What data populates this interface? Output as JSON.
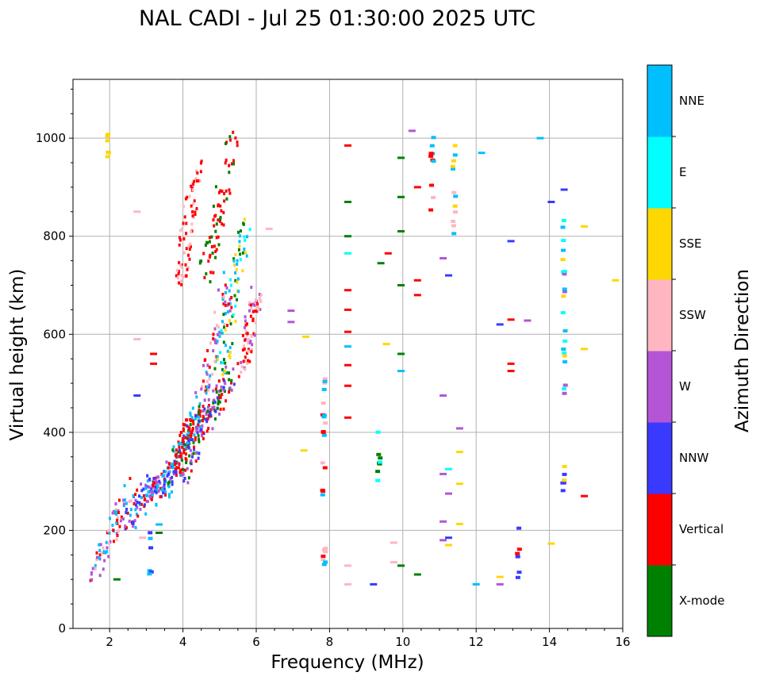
{
  "chart_data": {
    "type": "scatter",
    "title": "NAL CADI - Jul 25 01:30:00 2025 UTC",
    "xlabel": "Frequency (MHz)",
    "ylabel": "Virtual height (km)",
    "xlim": [
      1,
      16
    ],
    "ylim": [
      0,
      1120
    ],
    "xticks": [
      2,
      4,
      6,
      8,
      10,
      12,
      14,
      16
    ],
    "yticks": [
      0,
      200,
      400,
      600,
      800,
      1000
    ],
    "grid": true,
    "colorbar": {
      "label": "Azimuth Direction",
      "categories": [
        {
          "name": "X-mode",
          "color": "#008000"
        },
        {
          "name": "Vertical",
          "color": "#ff0000"
        },
        {
          "name": "NNW",
          "color": "#3a3aff"
        },
        {
          "name": "W",
          "color": "#b455d6"
        },
        {
          "name": "SSW",
          "color": "#ffb6c1"
        },
        {
          "name": "SSE",
          "color": "#ffd700"
        },
        {
          "name": "E",
          "color": "#00ffff"
        },
        {
          "name": "NNE",
          "color": "#00bfff"
        }
      ]
    },
    "trace_segments": [
      {
        "f0": 1.5,
        "f1": 2.6,
        "h0": 95,
        "h1": 300,
        "dir": [
          "Vertical",
          "NNE",
          "SSW",
          "W"
        ]
      },
      {
        "f0": 2.5,
        "f1": 3.2,
        "h0": 210,
        "h1": 300,
        "dir": [
          "Vertical",
          "NNW",
          "NNE",
          "W"
        ]
      },
      {
        "f0": 3.1,
        "f1": 3.8,
        "h0": 270,
        "h1": 330,
        "dir": [
          "W",
          "NNE",
          "NNW",
          "Vertical"
        ]
      },
      {
        "f0": 3.5,
        "f1": 4.3,
        "h0": 280,
        "h1": 420,
        "dir": [
          "Vertical",
          "X-mode",
          "NNW",
          "NNE"
        ]
      },
      {
        "f0": 3.8,
        "f1": 4.4,
        "h0": 330,
        "h1": 440,
        "dir": [
          "Vertical",
          "Vertical",
          "NNE"
        ]
      },
      {
        "f0": 4.0,
        "f1": 4.8,
        "h0": 300,
        "h1": 480,
        "dir": [
          "W",
          "NNW",
          "Vertical",
          "X-mode"
        ]
      },
      {
        "f0": 4.5,
        "f1": 5.3,
        "h0": 400,
        "h1": 520,
        "dir": [
          "X-mode",
          "NNW",
          "Vertical",
          "W"
        ]
      },
      {
        "f0": 4.5,
        "f1": 5.3,
        "h0": 470,
        "h1": 720,
        "dir": [
          "Vertical",
          "SSW",
          "NNE",
          "W"
        ]
      },
      {
        "f0": 5.0,
        "f1": 5.7,
        "h0": 500,
        "h1": 820,
        "dir": [
          "X-mode",
          "SSE",
          "E",
          "NNE"
        ]
      },
      {
        "f0": 5.6,
        "f1": 6.0,
        "h0": 520,
        "h1": 680,
        "dir": [
          "W",
          "SSW",
          "Vertical"
        ]
      },
      {
        "f0": 4.6,
        "f1": 5.4,
        "h0": 720,
        "h1": 1000,
        "dir": [
          "X-mode",
          "Vertical",
          "Vertical"
        ]
      },
      {
        "f0": 3.9,
        "f1": 4.4,
        "h0": 700,
        "h1": 960,
        "dir": [
          "Vertical",
          "Vertical",
          "SSW"
        ]
      }
    ],
    "vertical_strips": [
      {
        "f": 1.95,
        "h0": 955,
        "h1": 1010,
        "dir": [
          "SSE"
        ]
      },
      {
        "f": 3.1,
        "h0": 95,
        "h1": 200,
        "dir": [
          "NNE",
          "NNW"
        ]
      },
      {
        "f": 7.85,
        "h0": 90,
        "h1": 515,
        "dir": [
          "Vertical",
          "SSW",
          "NNE"
        ]
      },
      {
        "f": 9.35,
        "h0": 260,
        "h1": 410,
        "dir": [
          "X-mode",
          "E"
        ]
      },
      {
        "f": 10.8,
        "h0": 840,
        "h1": 1015,
        "dir": [
          "Vertical",
          "NNE",
          "SSW"
        ]
      },
      {
        "f": 11.4,
        "h0": 795,
        "h1": 1010,
        "dir": [
          "SSE",
          "NNE",
          "SSW"
        ]
      },
      {
        "f": 13.15,
        "h0": 90,
        "h1": 205,
        "dir": [
          "Vertical",
          "NNW"
        ]
      },
      {
        "f": 14.4,
        "h0": 470,
        "h1": 840,
        "dir": [
          "SSE",
          "W",
          "E",
          "NNE"
        ]
      },
      {
        "f": 14.4,
        "h0": 265,
        "h1": 340,
        "dir": [
          "SSE",
          "NNW"
        ]
      }
    ],
    "points": [
      {
        "f": 8.5,
        "h": 985,
        "dir": "Vertical"
      },
      {
        "f": 8.5,
        "h": 870,
        "dir": "X-mode"
      },
      {
        "f": 8.5,
        "h": 800,
        "dir": "X-mode"
      },
      {
        "f": 8.5,
        "h": 765,
        "dir": "E"
      },
      {
        "f": 8.5,
        "h": 690,
        "dir": "Vertical"
      },
      {
        "f": 8.5,
        "h": 650,
        "dir": "Vertical"
      },
      {
        "f": 8.5,
        "h": 605,
        "dir": "Vertical"
      },
      {
        "f": 8.5,
        "h": 575,
        "dir": "NNE"
      },
      {
        "f": 8.5,
        "h": 537,
        "dir": "Vertical"
      },
      {
        "f": 8.5,
        "h": 495,
        "dir": "Vertical"
      },
      {
        "f": 8.5,
        "h": 430,
        "dir": "Vertical"
      },
      {
        "f": 8.5,
        "h": 90,
        "dir": "SSW"
      },
      {
        "f": 8.5,
        "h": 128,
        "dir": "SSW"
      },
      {
        "f": 9.2,
        "h": 90,
        "dir": "NNW"
      },
      {
        "f": 9.6,
        "h": 765,
        "dir": "Vertical"
      },
      {
        "f": 9.4,
        "h": 745,
        "dir": "X-mode"
      },
      {
        "f": 9.55,
        "h": 580,
        "dir": "SSE"
      },
      {
        "f": 9.95,
        "h": 960,
        "dir": "X-mode"
      },
      {
        "f": 9.95,
        "h": 880,
        "dir": "X-mode"
      },
      {
        "f": 9.95,
        "h": 810,
        "dir": "X-mode"
      },
      {
        "f": 9.95,
        "h": 700,
        "dir": "X-mode"
      },
      {
        "f": 9.95,
        "h": 560,
        "dir": "X-mode"
      },
      {
        "f": 9.95,
        "h": 525,
        "dir": "NNE"
      },
      {
        "f": 9.95,
        "h": 128,
        "dir": "X-mode"
      },
      {
        "f": 10.4,
        "h": 900,
        "dir": "Vertical"
      },
      {
        "f": 10.4,
        "h": 710,
        "dir": "Vertical"
      },
      {
        "f": 10.4,
        "h": 680,
        "dir": "Vertical"
      },
      {
        "f": 10.4,
        "h": 110,
        "dir": "X-mode"
      },
      {
        "f": 10.25,
        "h": 1015,
        "dir": "W"
      },
      {
        "f": 11.1,
        "h": 755,
        "dir": "W"
      },
      {
        "f": 11.1,
        "h": 475,
        "dir": "W"
      },
      {
        "f": 11.1,
        "h": 315,
        "dir": "W"
      },
      {
        "f": 11.1,
        "h": 218,
        "dir": "W"
      },
      {
        "f": 11.1,
        "h": 180,
        "dir": "W"
      },
      {
        "f": 11.25,
        "h": 720,
        "dir": "NNW"
      },
      {
        "f": 11.25,
        "h": 325,
        "dir": "E"
      },
      {
        "f": 11.25,
        "h": 275,
        "dir": "W"
      },
      {
        "f": 11.25,
        "h": 185,
        "dir": "NNW"
      },
      {
        "f": 11.25,
        "h": 170,
        "dir": "SSE"
      },
      {
        "f": 11.55,
        "h": 408,
        "dir": "W"
      },
      {
        "f": 11.55,
        "h": 360,
        "dir": "SSE"
      },
      {
        "f": 11.55,
        "h": 295,
        "dir": "SSE"
      },
      {
        "f": 11.55,
        "h": 213,
        "dir": "SSE"
      },
      {
        "f": 12.15,
        "h": 970,
        "dir": "NNE"
      },
      {
        "f": 12.0,
        "h": 90,
        "dir": "NNE"
      },
      {
        "f": 12.65,
        "h": 105,
        "dir": "SSE"
      },
      {
        "f": 12.65,
        "h": 90,
        "dir": "W"
      },
      {
        "f": 12.65,
        "h": 620,
        "dir": "NNW"
      },
      {
        "f": 12.95,
        "h": 630,
        "dir": "Vertical"
      },
      {
        "f": 12.95,
        "h": 790,
        "dir": "NNW"
      },
      {
        "f": 12.95,
        "h": 540,
        "dir": "Vertical"
      },
      {
        "f": 12.95,
        "h": 525,
        "dir": "Vertical"
      },
      {
        "f": 13.4,
        "h": 628,
        "dir": "W"
      },
      {
        "f": 13.75,
        "h": 1000,
        "dir": "NNE"
      },
      {
        "f": 14.05,
        "h": 870,
        "dir": "NNW"
      },
      {
        "f": 14.05,
        "h": 173,
        "dir": "SSE"
      },
      {
        "f": 14.4,
        "h": 895,
        "dir": "NNW"
      },
      {
        "f": 14.95,
        "h": 820,
        "dir": "SSE"
      },
      {
        "f": 14.95,
        "h": 570,
        "dir": "SSE"
      },
      {
        "f": 14.95,
        "h": 270,
        "dir": "Vertical"
      },
      {
        "f": 15.8,
        "h": 710,
        "dir": "SSE"
      },
      {
        "f": 7.35,
        "h": 595,
        "dir": "SSE"
      },
      {
        "f": 7.3,
        "h": 363,
        "dir": "SSE"
      },
      {
        "f": 6.95,
        "h": 648,
        "dir": "W"
      },
      {
        "f": 6.95,
        "h": 625,
        "dir": "W"
      },
      {
        "f": 6.35,
        "h": 815,
        "dir": "SSW"
      },
      {
        "f": 2.75,
        "h": 850,
        "dir": "SSW"
      },
      {
        "f": 2.75,
        "h": 590,
        "dir": "SSW"
      },
      {
        "f": 3.2,
        "h": 560,
        "dir": "Vertical"
      },
      {
        "f": 3.2,
        "h": 540,
        "dir": "Vertical"
      },
      {
        "f": 2.75,
        "h": 475,
        "dir": "NNW"
      },
      {
        "f": 3.35,
        "h": 212,
        "dir": "NNE"
      },
      {
        "f": 3.35,
        "h": 195,
        "dir": "X-mode"
      },
      {
        "f": 2.2,
        "h": 100,
        "dir": "X-mode"
      },
      {
        "f": 2.9,
        "h": 185,
        "dir": "SSW"
      },
      {
        "f": 9.75,
        "h": 175,
        "dir": "SSW"
      },
      {
        "f": 9.75,
        "h": 135,
        "dir": "SSW"
      }
    ]
  }
}
